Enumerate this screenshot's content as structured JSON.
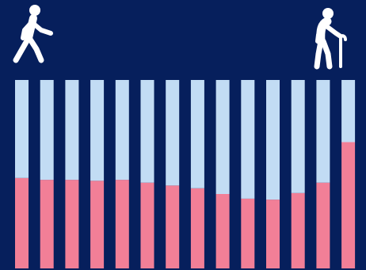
{
  "colors": {
    "background": "#061f5c",
    "bar_top": "#c2dcf4",
    "bar_bottom": "#f27f97",
    "icon": "#ffffff"
  },
  "icons": {
    "left": "walking-person-icon",
    "right": "elderly-person-with-cane-icon"
  },
  "chart_data": {
    "type": "bar",
    "stacked": true,
    "normalized": true,
    "categories": [
      "",
      "",
      "",
      "",
      "",
      "",
      "",
      "",
      "",
      "",
      "",
      "",
      "",
      ""
    ],
    "series": [
      {
        "values": [
          0.48,
          0.47,
          0.47,
          0.465,
          0.47,
          0.455,
          0.44,
          0.425,
          0.395,
          0.37,
          0.365,
          0.4,
          0.455,
          0.67
        ],
        "color": "#f27f97"
      },
      {
        "values": [
          0.52,
          0.53,
          0.53,
          0.535,
          0.53,
          0.545,
          0.56,
          0.575,
          0.605,
          0.63,
          0.635,
          0.6,
          0.545,
          0.33
        ],
        "color": "#c2dcf4"
      }
    ],
    "ylim": [
      0,
      1
    ],
    "grid": false,
    "legend": "none",
    "title": "",
    "xlabel": "",
    "ylabel": ""
  }
}
